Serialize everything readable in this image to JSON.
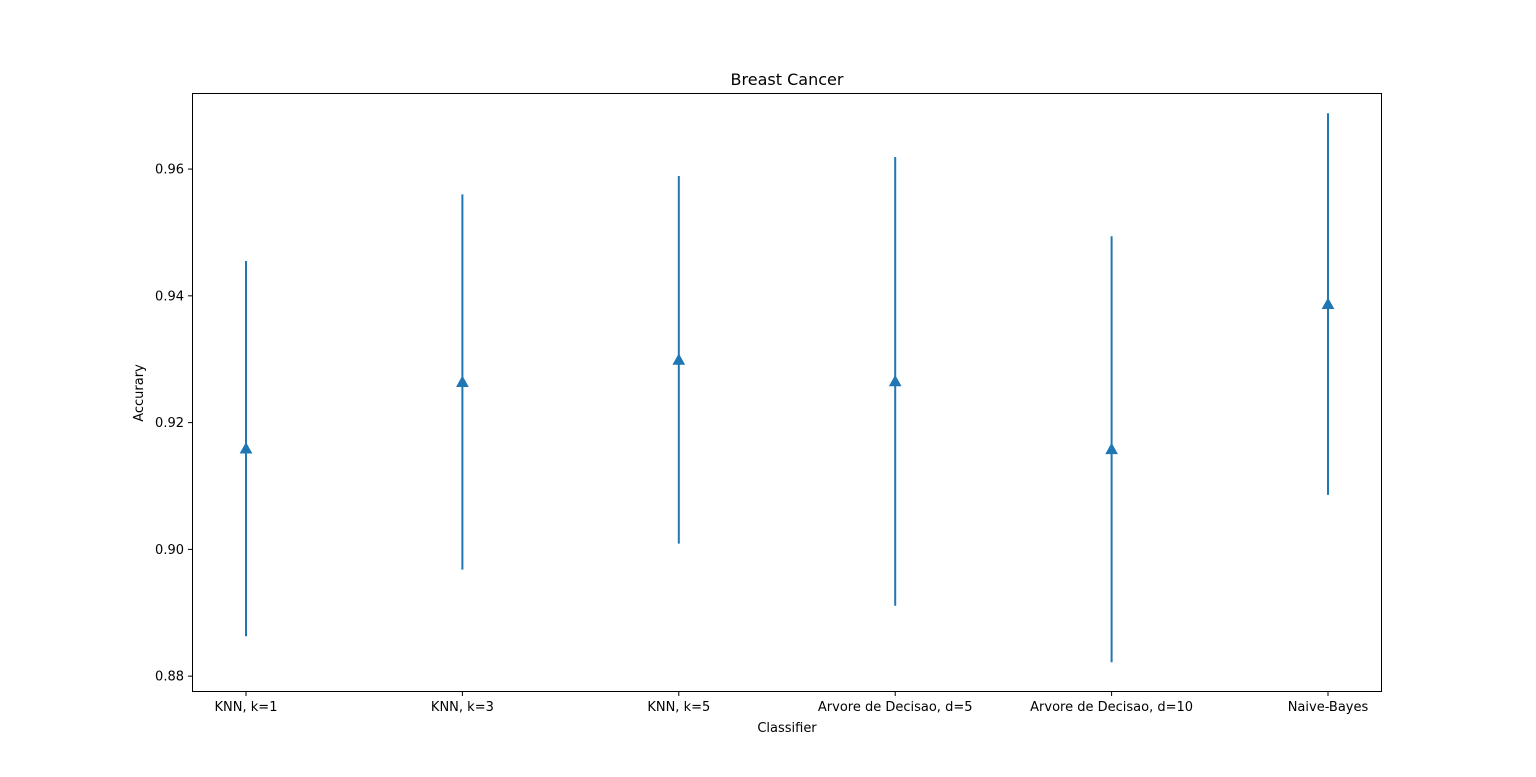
{
  "chart_data": {
    "type": "scatter",
    "subtype": "errorbar",
    "title": "Breast Cancer",
    "xlabel": "Classifier",
    "ylabel": "Accurary",
    "categories": [
      "KNN, k=1",
      "KNN, k=3",
      "KNN, k=5",
      "Arvore de Decisao, d=5",
      "Arvore de Decisao, d=10",
      "Naive-Bayes"
    ],
    "values": [
      0.9159,
      0.9264,
      0.9299,
      0.9265,
      0.9158,
      0.9387
    ],
    "errors": [
      0.0296,
      0.0296,
      0.029,
      0.0354,
      0.0336,
      0.0301
    ],
    "ylim": [
      0.8775,
      0.972
    ],
    "yticks": [
      0.88,
      0.9,
      0.92,
      0.94,
      0.96
    ],
    "ytick_labels": [
      "0.88",
      "0.90",
      "0.92",
      "0.94",
      "0.96"
    ],
    "marker": "triangle-up",
    "color": "#1f77b4",
    "grid": false,
    "legend": "none"
  }
}
